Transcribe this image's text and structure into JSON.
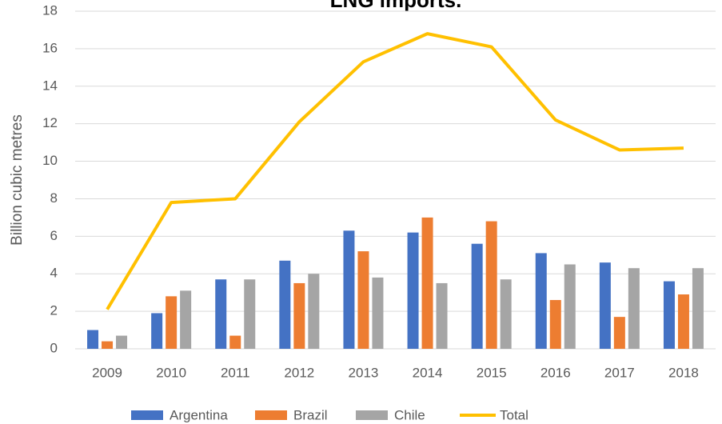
{
  "chart_data": {
    "type": "bar",
    "title": "LNG imports.",
    "y_label": "Billion cubic metres",
    "categories": [
      "2009",
      "2010",
      "2011",
      "2012",
      "2013",
      "2014",
      "2015",
      "2016",
      "2017",
      "2018"
    ],
    "series": [
      {
        "name": "Argentina",
        "color": "#4472c4",
        "type": "bar",
        "values": [
          1.0,
          1.9,
          3.7,
          4.7,
          6.3,
          6.2,
          5.6,
          5.1,
          4.6,
          3.6
        ]
      },
      {
        "name": "Brazil",
        "color": "#ed7d31",
        "type": "bar",
        "values": [
          0.4,
          2.8,
          0.7,
          3.5,
          5.2,
          7.0,
          6.8,
          2.6,
          1.7,
          2.9
        ]
      },
      {
        "name": "Chile",
        "color": "#a5a5a5",
        "type": "bar",
        "values": [
          0.7,
          3.1,
          3.7,
          4.0,
          3.8,
          3.5,
          3.7,
          4.5,
          4.3,
          4.3
        ]
      },
      {
        "name": "Total",
        "color": "#ffc000",
        "type": "line",
        "values": [
          2.1,
          7.8,
          8.0,
          12.1,
          15.3,
          16.8,
          16.1,
          12.2,
          10.6,
          10.7
        ]
      }
    ],
    "ylim": [
      0,
      18
    ],
    "yticks": [
      0,
      2,
      4,
      6,
      8,
      10,
      12,
      14,
      16,
      18
    ],
    "grid": true,
    "legend": "bottom"
  }
}
